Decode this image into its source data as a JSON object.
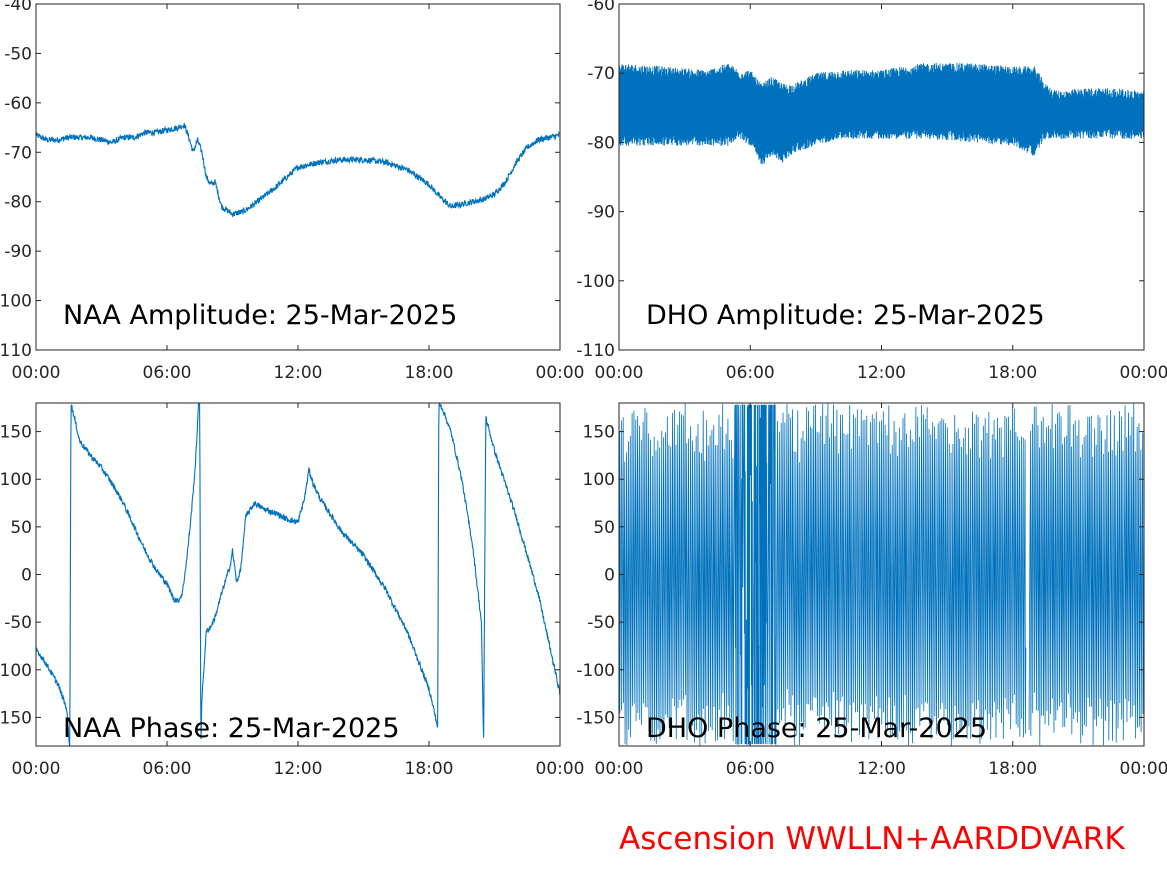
{
  "credit": "Ascension WWLLN+AARDDVARK",
  "colors": {
    "line": "#0072bd",
    "credit": "#ff0000",
    "axis": "#262626"
  },
  "chart_data": [
    {
      "type": "line",
      "title": "NAA Amplitude: 25-Mar-2025",
      "xlabel": "",
      "ylabel": "",
      "xlim": [
        0,
        24
      ],
      "ylim": [
        -110,
        -40
      ],
      "xticks": [
        0,
        6,
        12,
        18,
        24
      ],
      "xtick_labels": [
        "00:00",
        "06:00",
        "12:00",
        "18:00",
        "00:00"
      ],
      "yticks": [
        -110,
        -100,
        -90,
        -80,
        -70,
        -60,
        -50,
        -40
      ],
      "ytick_labels": [
        "-110",
        "-100",
        "-90",
        "-80",
        "-70",
        "-60",
        "-50",
        "-40"
      ],
      "noise": 0.6,
      "series": [
        {
          "x": [
            0,
            0.5,
            1,
            1.5,
            2,
            2.5,
            3,
            3.5,
            4,
            4.5,
            5,
            5.5,
            6,
            6.5,
            6.8,
            7,
            7.2,
            7.4,
            7.6,
            7.8,
            8,
            8.2,
            8.5,
            9,
            9.5,
            10,
            11,
            12,
            13,
            14,
            15,
            16,
            17,
            18,
            18.5,
            19,
            19.5,
            20,
            20.5,
            21,
            21.5,
            22,
            22.5,
            23,
            23.5,
            24
          ],
          "y": [
            -66.5,
            -67.5,
            -67.5,
            -67,
            -67,
            -67,
            -67.5,
            -68,
            -67,
            -67,
            -66,
            -66,
            -65.5,
            -65,
            -64.5,
            -67,
            -70,
            -67.5,
            -70,
            -75,
            -76.5,
            -76,
            -81,
            -82.5,
            -82,
            -80.5,
            -77,
            -73,
            -72,
            -71.5,
            -71.5,
            -72,
            -73.5,
            -76.5,
            -79,
            -81,
            -80.5,
            -80,
            -79.5,
            -78.5,
            -76,
            -72,
            -69,
            -67.5,
            -67,
            -66.5
          ]
        }
      ]
    },
    {
      "type": "line",
      "title": "DHO Amplitude: 25-Mar-2025",
      "xlabel": "",
      "ylabel": "",
      "xlim": [
        0,
        24
      ],
      "ylim": [
        -110,
        -60
      ],
      "xticks": [
        0,
        6,
        12,
        18,
        24
      ],
      "xtick_labels": [
        "00:00",
        "06:00",
        "12:00",
        "18:00",
        "00:00"
      ],
      "yticks": [
        -110,
        -100,
        -90,
        -80,
        -70,
        -60
      ],
      "ytick_labels": [
        "-110",
        "-100",
        "-90",
        "-80",
        "-70",
        "-60"
      ],
      "noise": 0,
      "series": [
        {
          "x": [
            0,
            2,
            4,
            5,
            5.5,
            6,
            6.5,
            7,
            7.5,
            8,
            9,
            10,
            12,
            14,
            16,
            18,
            19,
            19.5,
            20,
            22,
            24
          ],
          "y_upper": [
            -70,
            -70.5,
            -71,
            -70,
            -71,
            -71,
            -73,
            -72,
            -73,
            -73,
            -71.5,
            -71,
            -71,
            -70,
            -70,
            -70.5,
            -70.5,
            -73,
            -74,
            -73.5,
            -74
          ],
          "y_lower": [
            -79,
            -79,
            -79,
            -79,
            -78,
            -79,
            -82,
            -80.5,
            -81.5,
            -80,
            -79,
            -78,
            -78,
            -78,
            -78.5,
            -79,
            -80.5,
            -78,
            -78,
            -78,
            -78
          ]
        }
      ]
    },
    {
      "type": "line",
      "title": "NAA Phase: 25-Mar-2025",
      "xlabel": "",
      "ylabel": "",
      "xlim": [
        0,
        24
      ],
      "ylim": [
        -180,
        180
      ],
      "xticks": [
        0,
        6,
        12,
        18,
        24
      ],
      "xtick_labels": [
        "00:00",
        "06:00",
        "12:00",
        "18:00",
        "00:00"
      ],
      "yticks": [
        -150,
        -100,
        -50,
        0,
        50,
        100,
        150
      ],
      "ytick_labels": [
        "-150",
        "-100",
        "-50",
        "0",
        "50",
        "100",
        "150"
      ],
      "noise": 3,
      "series": [
        {
          "x": [
            0,
            0.5,
            1,
            1.4,
            1.5,
            1.55,
            1.6,
            2,
            2.5,
            3,
            3.5,
            4,
            4.5,
            5,
            5.5,
            6,
            6.3,
            6.5,
            6.7,
            6.9,
            7.1,
            7.3,
            7.45,
            7.5,
            7.55,
            7.6,
            7.8,
            8,
            8.2,
            8.5,
            8.7,
            8.9,
            9,
            9.2,
            9.4,
            9.6,
            10,
            10.5,
            11,
            11.5,
            12,
            12.3,
            12.5,
            12.7,
            13,
            14,
            15,
            16,
            17,
            17.5,
            18,
            18.4,
            18.45,
            18.5,
            18.6,
            19,
            19.5,
            20,
            20.4,
            20.5,
            20.6,
            21,
            22,
            23,
            24
          ],
          "y": [
            -78,
            -95,
            -115,
            -140,
            -170,
            -180,
            180,
            140,
            125,
            112,
            95,
            75,
            50,
            25,
            5,
            -10,
            -25,
            -28,
            -20,
            15,
            60,
            115,
            180,
            180,
            -180,
            -130,
            -60,
            -55,
            -45,
            -20,
            -5,
            10,
            25,
            -10,
            10,
            60,
            75,
            68,
            64,
            58,
            55,
            80,
            110,
            95,
            80,
            45,
            20,
            -15,
            -60,
            -90,
            -120,
            -160,
            180,
            178,
            175,
            150,
            100,
            30,
            -50,
            -180,
            165,
            130,
            60,
            -20,
            -125
          ]
        }
      ]
    },
    {
      "type": "line",
      "title": "DHO Phase: 25-Mar-2025",
      "xlabel": "",
      "ylabel": "",
      "xlim": [
        0,
        24
      ],
      "ylim": [
        -180,
        180
      ],
      "xticks": [
        0,
        6,
        12,
        18,
        24
      ],
      "xtick_labels": [
        "00:00",
        "06:00",
        "12:00",
        "18:00",
        "00:00"
      ],
      "yticks": [
        -150,
        -100,
        -50,
        0,
        50,
        100,
        150
      ],
      "ytick_labels": [
        "-150",
        "-100",
        "-50",
        "0",
        "50",
        "100",
        "150"
      ],
      "noise": 0,
      "series": [
        {
          "pattern": "phase wrapping between -180 and 180 throughout the day"
        }
      ]
    }
  ]
}
